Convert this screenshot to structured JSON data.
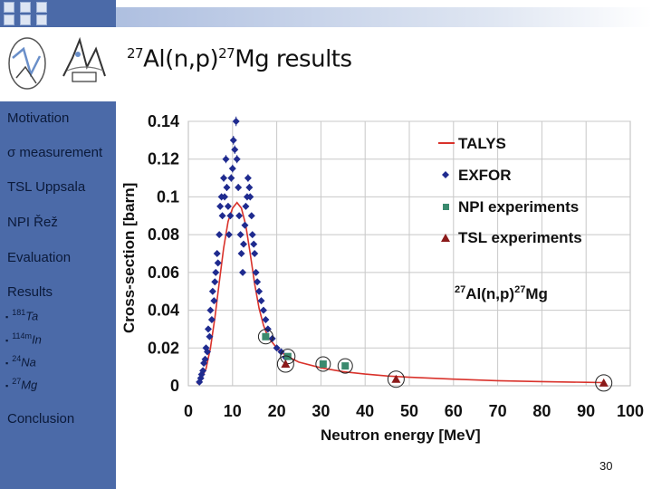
{
  "title": {
    "pre": "27",
    "mid1": "Al(n,p)",
    "pre2": "27",
    "mid2": "Mg results"
  },
  "sidebar": {
    "items": [
      "Motivation",
      "σ measurement",
      "TSL Uppsala",
      "NPI Řež",
      "Evaluation",
      "Results",
      "Conclusion"
    ],
    "subitems": [
      {
        "sup": "181",
        "text": "Ta"
      },
      {
        "sup": "114m",
        "text": "In"
      },
      {
        "sup": "24",
        "text": "Na"
      },
      {
        "sup": "27",
        "text": "Mg"
      }
    ]
  },
  "page_number": "30",
  "colors": {
    "sidebar": "#4b6aa8",
    "talys": "#d9322b",
    "exfor": "#1f2b8f",
    "npi": "#3a8a6e",
    "tsl": "#8b1a1a"
  },
  "chart_data": {
    "type": "scatter",
    "xlabel": "Neutron energy [MeV]",
    "ylabel": "Cross-section [barn]",
    "annotation": {
      "sup1": "27",
      "t1": "Al(n,p)",
      "sup2": "27",
      "t2": "Mg"
    },
    "xlim": [
      0,
      100
    ],
    "ylim": [
      0,
      0.14
    ],
    "xticks": [
      0,
      10,
      20,
      30,
      40,
      50,
      60,
      70,
      80,
      90,
      100
    ],
    "yticks": [
      0,
      0.02,
      0.04,
      0.06,
      0.08,
      0.1,
      0.12,
      0.14
    ],
    "ytick_labels": [
      "0",
      "0.02",
      "0.04",
      "0.06",
      "0.08",
      "0.1",
      "0.12",
      "0.14"
    ],
    "legend": [
      "TALYS",
      "EXFOR",
      "NPI experiments",
      "TSL experiments"
    ],
    "series": [
      {
        "name": "TALYS",
        "type": "line",
        "x": [
          2,
          3,
          4,
          5,
          6,
          7,
          8,
          9,
          10,
          11,
          12,
          13,
          14,
          15,
          16,
          17,
          18,
          20,
          22,
          25,
          30,
          35,
          40,
          45,
          50,
          60,
          70,
          80,
          90,
          94
        ],
        "y": [
          0.001,
          0.004,
          0.009,
          0.02,
          0.036,
          0.055,
          0.073,
          0.087,
          0.094,
          0.097,
          0.094,
          0.085,
          0.07,
          0.054,
          0.041,
          0.032,
          0.026,
          0.02,
          0.016,
          0.0125,
          0.0095,
          0.0075,
          0.0062,
          0.0052,
          0.0045,
          0.0035,
          0.0027,
          0.0022,
          0.0018,
          0.0017
        ]
      },
      {
        "name": "EXFOR",
        "type": "scatter",
        "x": [
          2.5,
          2.8,
          3.0,
          3.3,
          3.5,
          3.8,
          4.0,
          4.3,
          4.5,
          4.8,
          5.0,
          5.3,
          5.5,
          5.8,
          6.0,
          6.2,
          6.5,
          6.7,
          7.0,
          7.2,
          7.5,
          7.7,
          8.0,
          8.2,
          8.5,
          8.7,
          9.0,
          9.2,
          9.5,
          9.7,
          10.0,
          10.2,
          10.5,
          10.8,
          11.0,
          11.3,
          11.5,
          11.8,
          12.0,
          12.3,
          12.5,
          12.8,
          13.0,
          13.3,
          13.5,
          13.8,
          14.0,
          14.3,
          14.5,
          14.8,
          15.0,
          15.3,
          15.6,
          16.0,
          16.5,
          17.0,
          17.5,
          18.0,
          19.0,
          20.0,
          21.0,
          22.0
        ],
        "y": [
          0.002,
          0.004,
          0.006,
          0.008,
          0.012,
          0.014,
          0.02,
          0.018,
          0.03,
          0.026,
          0.04,
          0.035,
          0.05,
          0.045,
          0.055,
          0.06,
          0.07,
          0.065,
          0.08,
          0.095,
          0.1,
          0.09,
          0.11,
          0.1,
          0.12,
          0.105,
          0.095,
          0.08,
          0.09,
          0.11,
          0.115,
          0.13,
          0.125,
          0.14,
          0.12,
          0.105,
          0.09,
          0.08,
          0.07,
          0.06,
          0.075,
          0.085,
          0.095,
          0.1,
          0.11,
          0.105,
          0.1,
          0.09,
          0.08,
          0.075,
          0.07,
          0.06,
          0.055,
          0.05,
          0.045,
          0.04,
          0.035,
          0.03,
          0.025,
          0.02,
          0.018,
          0.015
        ]
      },
      {
        "name": "NPI experiments",
        "type": "scatter",
        "x": [
          17.5,
          22.5,
          30.5,
          35.5
        ],
        "y": [
          0.026,
          0.0155,
          0.0115,
          0.0105
        ]
      },
      {
        "name": "TSL experiments",
        "type": "scatter",
        "x": [
          22,
          47,
          94
        ],
        "y": [
          0.0115,
          0.0035,
          0.0015
        ]
      }
    ]
  }
}
